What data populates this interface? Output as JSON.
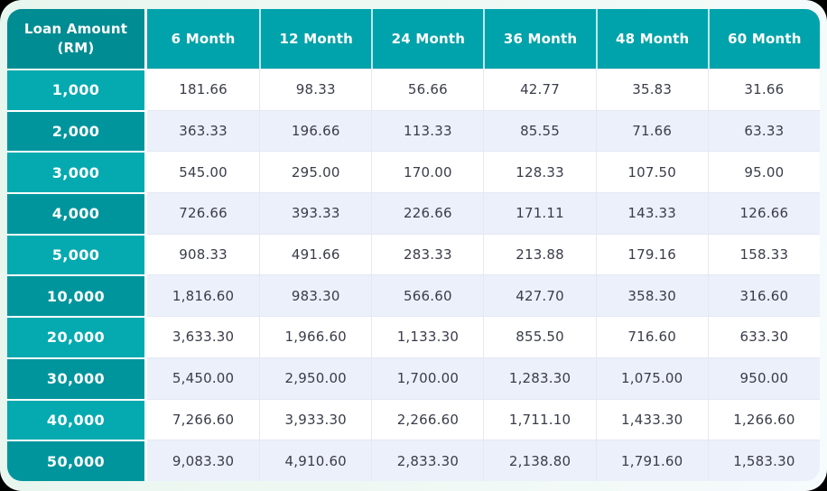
{
  "table": {
    "corner_header": {
      "line1": "Loan Amount",
      "line2": "(RM)"
    },
    "column_headers": [
      "6 Month",
      "12 Month",
      "24 Month",
      "36 Month",
      "48 Month",
      "60 Month"
    ]
  },
  "chart_data": {
    "type": "table",
    "title": "",
    "columns": [
      "Loan Amount (RM)",
      "6 Month",
      "12 Month",
      "24 Month",
      "36 Month",
      "48 Month",
      "60 Month"
    ],
    "rows": [
      [
        "1,000",
        "181.66",
        "98.33",
        "56.66",
        "42.77",
        "35.83",
        "31.66"
      ],
      [
        "2,000",
        "363.33",
        "196.66",
        "113.33",
        "85.55",
        "71.66",
        "63.33"
      ],
      [
        "3,000",
        "545.00",
        "295.00",
        "170.00",
        "128.33",
        "107.50",
        "95.00"
      ],
      [
        "4,000",
        "726.66",
        "393.33",
        "226.66",
        "171.11",
        "143.33",
        "126.66"
      ],
      [
        "5,000",
        "908.33",
        "491.66",
        "283.33",
        "213.88",
        "179.16",
        "158.33"
      ],
      [
        "10,000",
        "1,816.60",
        "983.30",
        "566.60",
        "427.70",
        "358.30",
        "316.60"
      ],
      [
        "20,000",
        "3,633.30",
        "1,966.60",
        "1,133.30",
        "855.50",
        "716.60",
        "633.30"
      ],
      [
        "30,000",
        "5,450.00",
        "2,950.00",
        "1,700.00",
        "1,283.30",
        "1,075.00",
        "950.00"
      ],
      [
        "40,000",
        "7,266.60",
        "3,933.30",
        "2,266.60",
        "1,711.10",
        "1,433.30",
        "1,266.60"
      ],
      [
        "50,000",
        "9,083.30",
        "4,910.60",
        "2,833.30",
        "2,138.80",
        "1,791.60",
        "1,583.30"
      ]
    ]
  },
  "colors": {
    "header_teal": "#00a3ab",
    "corner_header_teal": "#008c93",
    "row_label_teal_light": "#04aab0",
    "row_label_teal_dark": "#00959c",
    "row_bg_white": "#ffffff",
    "row_bg_lavender": "#ecf0fa",
    "cell_border": "#e4e8f2",
    "value_text": "#3a3d49",
    "card_background_mint": "#e7f6ee",
    "outer_background": "#000000"
  }
}
